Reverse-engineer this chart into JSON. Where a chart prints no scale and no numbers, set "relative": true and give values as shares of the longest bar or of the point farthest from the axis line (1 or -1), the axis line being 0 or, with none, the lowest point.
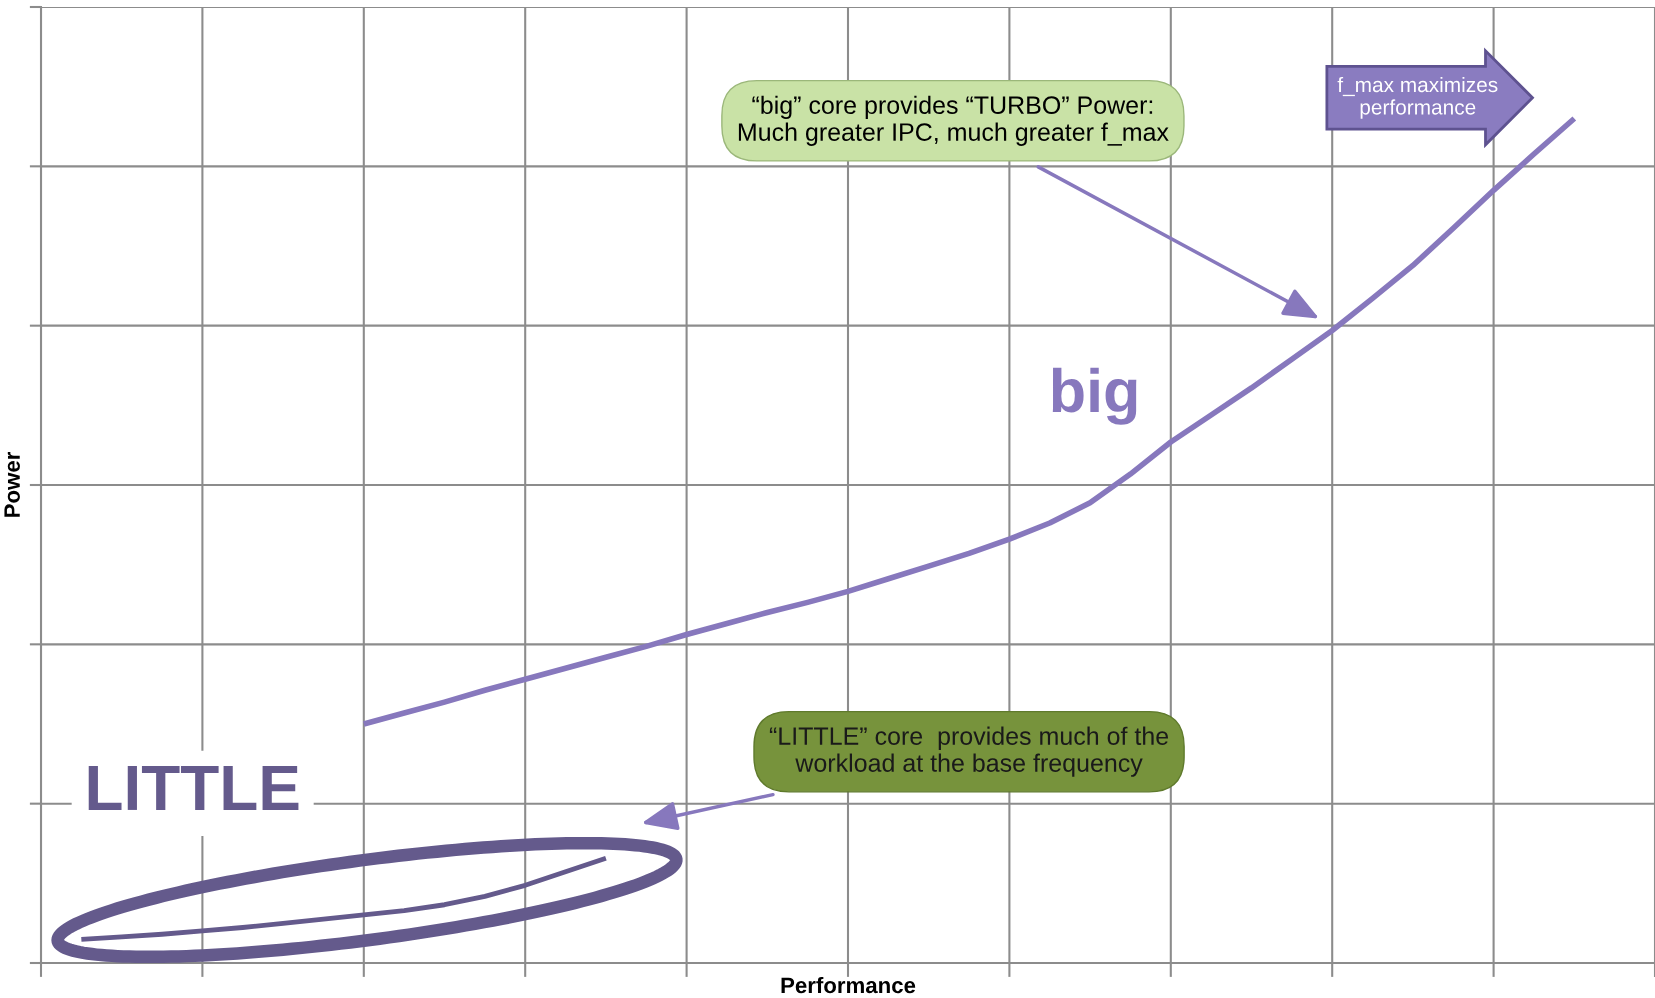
{
  "chart_data": {
    "type": "line",
    "relative": true,
    "xlabel": "Performance",
    "ylabel": "Power",
    "categories": [
      null,
      null,
      null,
      null,
      null,
      null,
      null,
      null,
      null,
      null,
      null,
      null,
      null,
      null,
      null,
      null,
      null,
      null,
      null,
      null,
      null,
      null,
      null,
      null,
      null,
      null,
      null,
      null,
      null,
      null,
      null,
      null,
      null,
      null,
      null,
      null,
      null,
      null,
      null,
      null,
      null
    ],
    "tick_labels": false,
    "grid": true,
    "marker": "none",
    "line_style": "solid",
    "series": [
      {
        "name": "big",
        "color": "#8778bd",
        "values": [
          null,
          null,
          null,
          null,
          null,
          null,
          null,
          null,
          0.283,
          0.296,
          0.309,
          0.323,
          0.336,
          0.349,
          0.362,
          0.375,
          0.389,
          0.402,
          0.415,
          0.427,
          0.44,
          0.455,
          0.47,
          0.485,
          0.502,
          0.521,
          0.545,
          0.579,
          0.617,
          0.649,
          0.681,
          0.715,
          0.749,
          0.787,
          0.826,
          0.87,
          0.915,
          0.958,
          1.0,
          null,
          null
        ]
      },
      {
        "name": "LITTLE",
        "color": "#645a8c",
        "values": [
          null,
          0.028,
          0.031,
          0.034,
          0.038,
          0.042,
          0.047,
          0.052,
          0.057,
          0.062,
          0.069,
          0.079,
          0.092,
          0.108,
          0.124,
          null,
          null,
          null,
          null,
          null,
          null,
          null,
          null,
          null,
          null,
          null,
          null,
          null,
          null,
          null,
          null,
          null,
          null,
          null,
          null,
          null,
          null,
          null,
          null,
          null,
          null
        ]
      }
    ],
    "annotations": [
      "“big” core provides “TURBO” Power:\nMuch greater IPC, much greater f_max",
      "“LITTLE” core  provides much of the\nworkload at the base frequency",
      "f_max maximizes\nperformance"
    ]
  }
}
